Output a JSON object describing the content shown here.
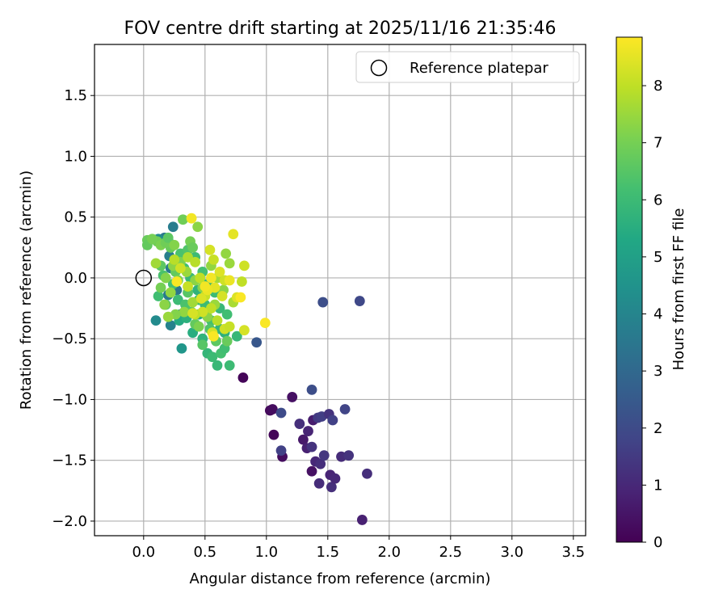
{
  "chart_data": {
    "type": "scatter",
    "title": "FOV centre drift starting at 2025/11/16 21:35:46",
    "xlabel": "Angular distance from reference (arcmin)",
    "ylabel": "Rotation from reference (arcmin)",
    "xlim": [
      -0.4,
      3.6
    ],
    "ylim": [
      -2.12,
      1.92
    ],
    "xticks": [
      0.0,
      0.5,
      1.0,
      1.5,
      2.0,
      2.5,
      3.0,
      3.5
    ],
    "xtick_labels": [
      "0.0",
      "0.5",
      "1.0",
      "1.5",
      "2.0",
      "2.5",
      "3.0",
      "3.5"
    ],
    "yticks": [
      -2.0,
      -1.5,
      -1.0,
      -0.5,
      0.0,
      0.5,
      1.0,
      1.5
    ],
    "ytick_labels": [
      "−2.0",
      "−1.5",
      "−1.0",
      "−0.5",
      "0.0",
      "0.5",
      "1.0",
      "1.5"
    ],
    "grid": true,
    "legend": {
      "position": "top-right",
      "entries": [
        "Reference platepar"
      ]
    },
    "reference_point": {
      "x": 0.0,
      "y": 0.0,
      "label": "Reference platepar"
    },
    "colorbar": {
      "label": "Hours from first FF file",
      "colormap": "viridis",
      "range": [
        0,
        8.85
      ],
      "ticks": [
        0,
        1,
        2,
        3,
        4,
        5,
        6,
        7,
        8
      ],
      "tick_labels": [
        "0",
        "1",
        "2",
        "3",
        "4",
        "5",
        "6",
        "7",
        "8"
      ]
    },
    "series": [
      {
        "name": "FOV centre drift",
        "points": [
          {
            "x": 0.81,
            "y": -0.82,
            "h": 0.1
          },
          {
            "x": 1.03,
            "y": -1.09,
            "h": 0.2
          },
          {
            "x": 1.05,
            "y": -1.08,
            "h": 0.3
          },
          {
            "x": 1.06,
            "y": -1.29,
            "h": 0.1
          },
          {
            "x": 1.13,
            "y": -1.47,
            "h": 0.3
          },
          {
            "x": 1.21,
            "y": -0.98,
            "h": 0.4
          },
          {
            "x": 1.3,
            "y": -1.33,
            "h": 0.6
          },
          {
            "x": 1.33,
            "y": -1.4,
            "h": 0.8
          },
          {
            "x": 1.34,
            "y": -1.26,
            "h": 0.9
          },
          {
            "x": 1.37,
            "y": -1.59,
            "h": 0.4
          },
          {
            "x": 1.38,
            "y": -1.17,
            "h": 0.7
          },
          {
            "x": 1.4,
            "y": -1.51,
            "h": 1.0
          },
          {
            "x": 1.27,
            "y": -1.2,
            "h": 1.2
          },
          {
            "x": 1.37,
            "y": -1.39,
            "h": 1.3
          },
          {
            "x": 1.43,
            "y": -1.69,
            "h": 1.1
          },
          {
            "x": 1.44,
            "y": -1.53,
            "h": 1.2
          },
          {
            "x": 1.47,
            "y": -1.46,
            "h": 1.4
          },
          {
            "x": 1.42,
            "y": -1.15,
            "h": 1.5
          },
          {
            "x": 1.45,
            "y": -1.14,
            "h": 1.6
          },
          {
            "x": 1.51,
            "y": -1.12,
            "h": 1.3
          },
          {
            "x": 1.52,
            "y": -1.62,
            "h": 0.9
          },
          {
            "x": 1.53,
            "y": -1.72,
            "h": 1.2
          },
          {
            "x": 1.56,
            "y": -1.65,
            "h": 1.0
          },
          {
            "x": 1.54,
            "y": -1.17,
            "h": 1.7
          },
          {
            "x": 1.61,
            "y": -1.47,
            "h": 1.1
          },
          {
            "x": 1.67,
            "y": -1.46,
            "h": 1.3
          },
          {
            "x": 1.64,
            "y": -1.08,
            "h": 1.8
          },
          {
            "x": 1.78,
            "y": -1.99,
            "h": 0.8
          },
          {
            "x": 1.82,
            "y": -1.61,
            "h": 1.2
          },
          {
            "x": 1.12,
            "y": -1.11,
            "h": 2.0
          },
          {
            "x": 1.12,
            "y": -1.42,
            "h": 1.7
          },
          {
            "x": 1.37,
            "y": -0.92,
            "h": 2.1
          },
          {
            "x": 1.46,
            "y": -0.2,
            "h": 2.1
          },
          {
            "x": 1.76,
            "y": -0.19,
            "h": 1.9
          },
          {
            "x": 0.92,
            "y": -0.53,
            "h": 2.4
          },
          {
            "x": 0.1,
            "y": -0.35,
            "h": 4.2
          },
          {
            "x": 0.22,
            "y": -0.39,
            "h": 3.9
          },
          {
            "x": 0.31,
            "y": -0.58,
            "h": 4.6
          },
          {
            "x": 0.24,
            "y": 0.42,
            "h": 3.7
          },
          {
            "x": 0.17,
            "y": 0.33,
            "h": 3.5
          },
          {
            "x": 0.2,
            "y": 0.31,
            "h": 4.3
          },
          {
            "x": 0.21,
            "y": 0.18,
            "h": 3.8
          },
          {
            "x": 0.22,
            "y": 0.08,
            "h": 3.6
          },
          {
            "x": 0.27,
            "y": -0.1,
            "h": 3.4
          },
          {
            "x": 0.3,
            "y": -0.3,
            "h": 3.9
          },
          {
            "x": 0.2,
            "y": -0.14,
            "h": 3.6
          },
          {
            "x": 0.12,
            "y": 0.32,
            "h": 4.2
          },
          {
            "x": 0.26,
            "y": 0.13,
            "h": 5.0
          },
          {
            "x": 0.29,
            "y": -0.35,
            "h": 5.4
          },
          {
            "x": 0.35,
            "y": -0.33,
            "h": 5.6
          },
          {
            "x": 0.4,
            "y": -0.45,
            "h": 5.5
          },
          {
            "x": 0.45,
            "y": -0.3,
            "h": 5.3
          },
          {
            "x": 0.48,
            "y": -0.5,
            "h": 5.7
          },
          {
            "x": 0.52,
            "y": -0.62,
            "h": 5.8
          },
          {
            "x": 0.56,
            "y": -0.65,
            "h": 6.0
          },
          {
            "x": 0.6,
            "y": -0.72,
            "h": 5.9
          },
          {
            "x": 0.63,
            "y": -0.62,
            "h": 6.2
          },
          {
            "x": 0.66,
            "y": -0.58,
            "h": 6.1
          },
          {
            "x": 0.7,
            "y": -0.72,
            "h": 6.0
          },
          {
            "x": 0.62,
            "y": -0.42,
            "h": 5.8
          },
          {
            "x": 0.66,
            "y": -0.45,
            "h": 5.6
          },
          {
            "x": 0.76,
            "y": -0.48,
            "h": 5.9
          },
          {
            "x": 0.55,
            "y": -0.35,
            "h": 6.2
          },
          {
            "x": 0.5,
            "y": -0.22,
            "h": 6.0
          },
          {
            "x": 0.44,
            "y": -0.1,
            "h": 5.7
          },
          {
            "x": 0.38,
            "y": 0.0,
            "h": 5.9
          },
          {
            "x": 0.33,
            "y": 0.08,
            "h": 6.1
          },
          {
            "x": 0.3,
            "y": 0.2,
            "h": 6.3
          },
          {
            "x": 0.36,
            "y": 0.23,
            "h": 6.4
          },
          {
            "x": 0.42,
            "y": 0.17,
            "h": 6.0
          },
          {
            "x": 0.48,
            "y": 0.05,
            "h": 6.2
          },
          {
            "x": 0.52,
            "y": -0.05,
            "h": 5.8
          },
          {
            "x": 0.58,
            "y": -0.12,
            "h": 6.0
          },
          {
            "x": 0.62,
            "y": -0.25,
            "h": 5.9
          },
          {
            "x": 0.68,
            "y": -0.3,
            "h": 6.1
          },
          {
            "x": 0.16,
            "y": 0.02,
            "h": 6.3
          },
          {
            "x": 0.12,
            "y": -0.15,
            "h": 6.1
          },
          {
            "x": 0.18,
            "y": -0.22,
            "h": 6.4
          },
          {
            "x": 0.24,
            "y": -0.05,
            "h": 6.2
          },
          {
            "x": 0.28,
            "y": -0.18,
            "h": 6.0
          },
          {
            "x": 0.34,
            "y": -0.22,
            "h": 6.3
          },
          {
            "x": 0.39,
            "y": -0.28,
            "h": 6.5
          },
          {
            "x": 0.45,
            "y": -0.18,
            "h": 6.1
          },
          {
            "x": 0.54,
            "y": -0.42,
            "h": 6.4
          },
          {
            "x": 0.59,
            "y": -0.52,
            "h": 6.6
          },
          {
            "x": 0.68,
            "y": -0.52,
            "h": 6.8
          },
          {
            "x": 0.48,
            "y": -0.55,
            "h": 6.5
          },
          {
            "x": 0.42,
            "y": -0.38,
            "h": 6.7
          },
          {
            "x": 0.36,
            "y": -0.12,
            "h": 6.5
          },
          {
            "x": 0.26,
            "y": 0.05,
            "h": 6.7
          },
          {
            "x": 0.22,
            "y": 0.25,
            "h": 6.8
          },
          {
            "x": 0.14,
            "y": 0.1,
            "h": 6.6
          },
          {
            "x": 0.11,
            "y": 0.3,
            "h": 6.9
          },
          {
            "x": 0.03,
            "y": 0.31,
            "h": 6.8
          },
          {
            "x": 0.03,
            "y": 0.27,
            "h": 6.7
          },
          {
            "x": 0.07,
            "y": 0.32,
            "h": 7.0
          },
          {
            "x": 0.14,
            "y": 0.27,
            "h": 7.1
          },
          {
            "x": 0.18,
            "y": 0.29,
            "h": 6.9
          },
          {
            "x": 0.2,
            "y": 0.33,
            "h": 6.6
          },
          {
            "x": 0.25,
            "y": 0.27,
            "h": 7.2
          },
          {
            "x": 0.32,
            "y": 0.48,
            "h": 6.9
          },
          {
            "x": 0.38,
            "y": 0.3,
            "h": 7.0
          },
          {
            "x": 0.4,
            "y": 0.25,
            "h": 6.8
          },
          {
            "x": 0.44,
            "y": 0.42,
            "h": 7.3
          },
          {
            "x": 0.3,
            "y": 0.13,
            "h": 7.1
          },
          {
            "x": 0.24,
            "y": 0.1,
            "h": 7.3
          },
          {
            "x": 0.18,
            "y": 0.0,
            "h": 7.2
          },
          {
            "x": 0.14,
            "y": -0.08,
            "h": 7.0
          },
          {
            "x": 0.22,
            "y": -0.12,
            "h": 7.4
          },
          {
            "x": 0.28,
            "y": -0.02,
            "h": 7.1
          },
          {
            "x": 0.35,
            "y": 0.05,
            "h": 7.5
          },
          {
            "x": 0.42,
            "y": -0.02,
            "h": 7.3
          },
          {
            "x": 0.48,
            "y": -0.08,
            "h": 7.2
          },
          {
            "x": 0.55,
            "y": 0.1,
            "h": 7.4
          },
          {
            "x": 0.6,
            "y": 0.0,
            "h": 7.6
          },
          {
            "x": 0.65,
            "y": -0.1,
            "h": 7.3
          },
          {
            "x": 0.7,
            "y": 0.12,
            "h": 7.5
          },
          {
            "x": 0.67,
            "y": 0.2,
            "h": 7.4
          },
          {
            "x": 0.73,
            "y": -0.2,
            "h": 7.7
          },
          {
            "x": 0.58,
            "y": -0.22,
            "h": 7.5
          },
          {
            "x": 0.52,
            "y": -0.32,
            "h": 7.3
          },
          {
            "x": 0.45,
            "y": -0.4,
            "h": 7.1
          },
          {
            "x": 0.4,
            "y": -0.2,
            "h": 7.6
          },
          {
            "x": 0.33,
            "y": -0.28,
            "h": 7.4
          },
          {
            "x": 0.26,
            "y": -0.3,
            "h": 7.2
          },
          {
            "x": 0.2,
            "y": -0.32,
            "h": 7.5
          },
          {
            "x": 0.17,
            "y": -0.22,
            "h": 7.3
          },
          {
            "x": 0.1,
            "y": 0.12,
            "h": 7.6
          },
          {
            "x": 0.36,
            "y": 0.17,
            "h": 7.8
          },
          {
            "x": 0.42,
            "y": 0.13,
            "h": 7.9
          },
          {
            "x": 0.46,
            "y": 0.0,
            "h": 8.0
          },
          {
            "x": 0.5,
            "y": -0.15,
            "h": 8.1
          },
          {
            "x": 0.55,
            "y": -0.25,
            "h": 8.0
          },
          {
            "x": 0.6,
            "y": -0.35,
            "h": 7.9
          },
          {
            "x": 0.66,
            "y": -0.42,
            "h": 8.2
          },
          {
            "x": 0.7,
            "y": -0.4,
            "h": 8.1
          },
          {
            "x": 0.56,
            "y": -0.45,
            "h": 8.3
          },
          {
            "x": 0.48,
            "y": -0.28,
            "h": 8.2
          },
          {
            "x": 0.42,
            "y": -0.3,
            "h": 8.0
          },
          {
            "x": 0.36,
            "y": -0.07,
            "h": 8.1
          },
          {
            "x": 0.3,
            "y": 0.08,
            "h": 8.2
          },
          {
            "x": 0.25,
            "y": 0.15,
            "h": 7.9
          },
          {
            "x": 0.54,
            "y": 0.23,
            "h": 8.3
          },
          {
            "x": 0.57,
            "y": 0.15,
            "h": 8.1
          },
          {
            "x": 0.62,
            "y": 0.05,
            "h": 8.4
          },
          {
            "x": 0.66,
            "y": -0.02,
            "h": 8.2
          },
          {
            "x": 0.64,
            "y": -0.15,
            "h": 8.3
          },
          {
            "x": 0.58,
            "y": -0.08,
            "h": 8.5
          },
          {
            "x": 0.52,
            "y": -0.1,
            "h": 8.6
          },
          {
            "x": 0.47,
            "y": -0.17,
            "h": 8.4
          },
          {
            "x": 0.4,
            "y": -0.29,
            "h": 8.3
          },
          {
            "x": 0.73,
            "y": 0.36,
            "h": 8.5
          },
          {
            "x": 0.82,
            "y": 0.1,
            "h": 8.2
          },
          {
            "x": 0.82,
            "y": -0.43,
            "h": 8.3
          },
          {
            "x": 0.76,
            "y": -0.16,
            "h": 8.4
          },
          {
            "x": 0.8,
            "y": -0.03,
            "h": 8.0
          },
          {
            "x": 0.7,
            "y": -0.02,
            "h": 8.6
          },
          {
            "x": 0.39,
            "y": 0.49,
            "h": 8.7
          },
          {
            "x": 0.27,
            "y": -0.03,
            "h": 8.8
          },
          {
            "x": 0.5,
            "y": -0.07,
            "h": 8.7
          },
          {
            "x": 0.57,
            "y": -0.48,
            "h": 8.8
          },
          {
            "x": 0.79,
            "y": -0.16,
            "h": 8.8
          },
          {
            "x": 0.99,
            "y": -0.37,
            "h": 8.8
          },
          {
            "x": 0.55,
            "y": 0.0,
            "h": 8.7
          }
        ]
      }
    ]
  }
}
